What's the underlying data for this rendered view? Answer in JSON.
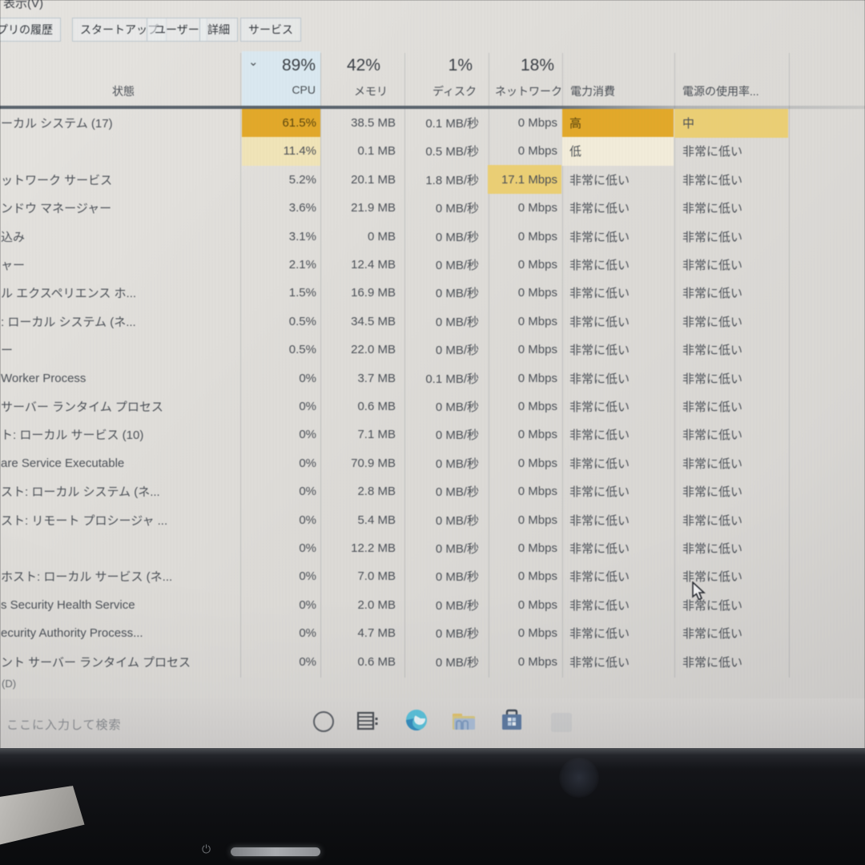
{
  "menu": {
    "view_label": "表示(V)"
  },
  "tabs": [
    {
      "label": "プリの履歴"
    },
    {
      "label": "スタートアップ"
    },
    {
      "label": "ユーザー"
    },
    {
      "label": "詳細"
    },
    {
      "label": "サービス"
    }
  ],
  "table": {
    "sort_chevron": "⌄",
    "columns": {
      "status_label": "状態",
      "cpu_pct": "89%",
      "cpu_label": "CPU",
      "memory_pct": "42%",
      "memory_label": "メモリ",
      "disk_pct": "1%",
      "disk_label": "ディスク",
      "network_pct": "18%",
      "network_label": "ネットワーク",
      "power_label": "電力消費",
      "trend_label": "電源の使用率..."
    },
    "rows": [
      {
        "name": "ーカル システム (17)",
        "cpu": "61.5%",
        "memory": "38.5 MB",
        "disk": "0.1 MB/秒",
        "network": "0 Mbps",
        "power": "高",
        "trend": "中",
        "heat": {
          "cpu": "strong",
          "power": "strong",
          "trend": "medium"
        }
      },
      {
        "name": "",
        "cpu": "11.4%",
        "memory": "0.1 MB",
        "disk": "0.5 MB/秒",
        "network": "0 Mbps",
        "power": "低",
        "trend": "非常に低い",
        "heat": {
          "cpu": "light",
          "power": "pale"
        }
      },
      {
        "name": "ットワーク サービス",
        "cpu": "5.2%",
        "memory": "20.1 MB",
        "disk": "1.8 MB/秒",
        "network": "17.1 Mbps",
        "power": "非常に低い",
        "trend": "非常に低い",
        "heat": {
          "network": "medium"
        }
      },
      {
        "name": "ンドウ マネージャー",
        "cpu": "3.6%",
        "memory": "21.9 MB",
        "disk": "0 MB/秒",
        "network": "0 Mbps",
        "power": "非常に低い",
        "trend": "非常に低い",
        "heat": {}
      },
      {
        "name": "込み",
        "cpu": "3.1%",
        "memory": "0 MB",
        "disk": "0 MB/秒",
        "network": "0 Mbps",
        "power": "非常に低い",
        "trend": "非常に低い",
        "heat": {}
      },
      {
        "name": "ャー",
        "cpu": "2.1%",
        "memory": "12.4 MB",
        "disk": "0 MB/秒",
        "network": "0 Mbps",
        "power": "非常に低い",
        "trend": "非常に低い",
        "heat": {}
      },
      {
        "name": "ル エクスペリエンス ホ...",
        "cpu": "1.5%",
        "memory": "16.9 MB",
        "disk": "0 MB/秒",
        "network": "0 Mbps",
        "power": "非常に低い",
        "trend": "非常に低い",
        "heat": {}
      },
      {
        "name": ": ローカル システム (ネ...",
        "cpu": "0.5%",
        "memory": "34.5 MB",
        "disk": "0 MB/秒",
        "network": "0 Mbps",
        "power": "非常に低い",
        "trend": "非常に低い",
        "heat": {}
      },
      {
        "name": "ー",
        "cpu": "0.5%",
        "memory": "22.0 MB",
        "disk": "0 MB/秒",
        "network": "0 Mbps",
        "power": "非常に低い",
        "trend": "非常に低い",
        "heat": {}
      },
      {
        "name": "Worker Process",
        "cpu": "0%",
        "memory": "3.7 MB",
        "disk": "0.1 MB/秒",
        "network": "0 Mbps",
        "power": "非常に低い",
        "trend": "非常に低い",
        "heat": {}
      },
      {
        "name": "サーバー ランタイム プロセス",
        "cpu": "0%",
        "memory": "0.6 MB",
        "disk": "0 MB/秒",
        "network": "0 Mbps",
        "power": "非常に低い",
        "trend": "非常に低い",
        "heat": {}
      },
      {
        "name": "ト: ローカル サービス (10)",
        "cpu": "0%",
        "memory": "7.1 MB",
        "disk": "0 MB/秒",
        "network": "0 Mbps",
        "power": "非常に低い",
        "trend": "非常に低い",
        "heat": {}
      },
      {
        "name": "are Service Executable",
        "cpu": "0%",
        "memory": "70.9 MB",
        "disk": "0 MB/秒",
        "network": "0 Mbps",
        "power": "非常に低い",
        "trend": "非常に低い",
        "heat": {}
      },
      {
        "name": "スト: ローカル システム (ネ...",
        "cpu": "0%",
        "memory": "2.8 MB",
        "disk": "0 MB/秒",
        "network": "0 Mbps",
        "power": "非常に低い",
        "trend": "非常に低い",
        "heat": {}
      },
      {
        "name": "スト: リモート プロシージャ ...",
        "cpu": "0%",
        "memory": "5.4 MB",
        "disk": "0 MB/秒",
        "network": "0 Mbps",
        "power": "非常に低い",
        "trend": "非常に低い",
        "heat": {}
      },
      {
        "name": "",
        "cpu": "0%",
        "memory": "12.2 MB",
        "disk": "0 MB/秒",
        "network": "0 Mbps",
        "power": "非常に低い",
        "trend": "非常に低い",
        "heat": {}
      },
      {
        "name": "ホスト: ローカル サービス (ネ...",
        "cpu": "0%",
        "memory": "7.0 MB",
        "disk": "0 MB/秒",
        "network": "0 Mbps",
        "power": "非常に低い",
        "trend": "非常に低い",
        "heat": {}
      },
      {
        "name": "s Security Health Service",
        "cpu": "0%",
        "memory": "2.0 MB",
        "disk": "0 MB/秒",
        "network": "0 Mbps",
        "power": "非常に低い",
        "trend": "非常に低い",
        "heat": {}
      },
      {
        "name": "ecurity Authority Process...",
        "cpu": "0%",
        "memory": "4.7 MB",
        "disk": "0 MB/秒",
        "network": "0 Mbps",
        "power": "非常に低い",
        "trend": "非常に低い",
        "heat": {}
      },
      {
        "name": "ント サーバー ランタイム プロセス",
        "cpu": "0%",
        "memory": "0.6 MB",
        "disk": "0 MB/秒",
        "network": "0 Mbps",
        "power": "非常に低い",
        "trend": "非常に低い",
        "heat": {}
      }
    ]
  },
  "window_footer": {
    "fewer_details_fragment": "(D)"
  },
  "taskbar": {
    "search_placeholder": "ここに入力して検索",
    "icons": [
      "cortana-icon",
      "task-view-icon",
      "edge-icon",
      "file-explorer-icon",
      "store-icon"
    ]
  },
  "colors": {
    "heat_strong": "#e8a91f",
    "heat_medium": "#eecf6d",
    "heat_light": "#f2e4b4",
    "heat_pale": "#f3edd8",
    "sort_column_highlight": "#d9e9f1",
    "screen_background": "#dedcd8"
  }
}
